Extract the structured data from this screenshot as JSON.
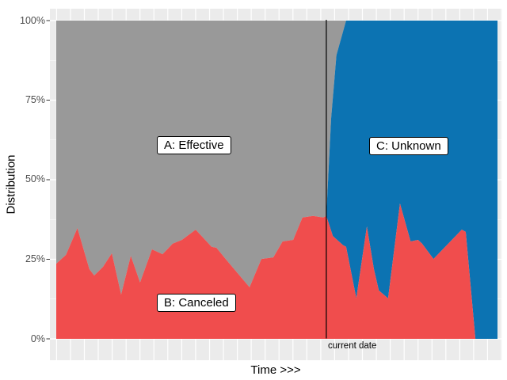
{
  "chart_data": {
    "type": "area",
    "subtype": "percent-stacked-area",
    "title": "",
    "xlabel": "Time >>>",
    "ylabel": "Distribution",
    "x_axis": {
      "label": "Time >>>",
      "tick_labels": "none",
      "range_t": [
        0,
        100
      ]
    },
    "y_axis": {
      "label": "Distribution",
      "unit": "%",
      "range": [
        0,
        100
      ]
    },
    "grid": "white major and minor gridlines on grey panel",
    "legend": "none (direct area labels)",
    "yticks": [
      {
        "value": 100,
        "label": "100%"
      },
      {
        "value": 75,
        "label": "75%"
      },
      {
        "value": 50,
        "label": "50%"
      },
      {
        "value": 25,
        "label": "25%"
      },
      {
        "value": 0,
        "label": "0%"
      }
    ],
    "current_date_t": 61.2,
    "current_date_label": "current date",
    "annotations": [
      {
        "text": "A: Effective",
        "type": "label-box",
        "on_series": "A: Effective"
      },
      {
        "text": "B: Canceled",
        "type": "label-box",
        "on_series": "B: Canceled"
      },
      {
        "text": "C: Unknown",
        "type": "label-box",
        "on_series": "C: Unknown"
      }
    ],
    "colors": {
      "panel": "#EBEBEB",
      "grid": "#FFFFFF",
      "axis_text": "#4D4D4D",
      "current_date_line": "#000000"
    },
    "series": [
      {
        "name": "B: Canceled",
        "color": "#F04D4D",
        "stack_position": "bottom (0% up to value)",
        "points_t_pct": [
          [
            0,
            23.6
          ],
          [
            2.2,
            26.4
          ],
          [
            4.8,
            34.8
          ],
          [
            7.5,
            21.9
          ],
          [
            8.6,
            19.9
          ],
          [
            10.6,
            22.6
          ],
          [
            12.6,
            26.9
          ],
          [
            14.7,
            13.9
          ],
          [
            16.9,
            26.1
          ],
          [
            19,
            17.7
          ],
          [
            21.7,
            28.1
          ],
          [
            24.1,
            26.6
          ],
          [
            26.4,
            29.9
          ],
          [
            28.5,
            31.1
          ],
          [
            31.6,
            34.3
          ],
          [
            35.2,
            28.9
          ],
          [
            36.3,
            28.6
          ],
          [
            38.8,
            24.4
          ],
          [
            43.8,
            16.2
          ],
          [
            46.5,
            25.1
          ],
          [
            49.2,
            25.6
          ],
          [
            51.3,
            30.6
          ],
          [
            53.7,
            31.1
          ],
          [
            55.8,
            38.1
          ],
          [
            58.2,
            38.6
          ],
          [
            60.5,
            38.1
          ],
          [
            61.2,
            38.6
          ],
          [
            62.7,
            32.3
          ],
          [
            65,
            29.4
          ],
          [
            65.7,
            28.9
          ],
          [
            68,
            12.7
          ],
          [
            70.4,
            35.3
          ],
          [
            72,
            21.9
          ],
          [
            73.1,
            15.2
          ],
          [
            75.2,
            12.7
          ],
          [
            77.9,
            42.5
          ],
          [
            80.3,
            30.6
          ],
          [
            82,
            31.1
          ],
          [
            82.9,
            29.9
          ],
          [
            85.5,
            25.1
          ],
          [
            91.9,
            34.3
          ],
          [
            92.8,
            33.6
          ],
          [
            95,
            0
          ],
          [
            100,
            0
          ]
        ]
      },
      {
        "name": "A: Effective",
        "color": "#999999",
        "stack_position": "top, before current date",
        "values": "100 minus B: Canceled",
        "fades_out_t": [
          61.2,
          65.7
        ]
      },
      {
        "name": "C: Unknown",
        "color": "#0C73B2",
        "stack_position": "top, after current date",
        "values": "100 minus B: Canceled",
        "fades_in_t": [
          61.2,
          65.7
        ],
        "gray_blue_boundary_t_pct": [
          [
            61.2,
            38.6
          ],
          [
            62.3,
            69.2
          ],
          [
            63.5,
            89.1
          ],
          [
            65.7,
            100
          ]
        ]
      }
    ]
  }
}
